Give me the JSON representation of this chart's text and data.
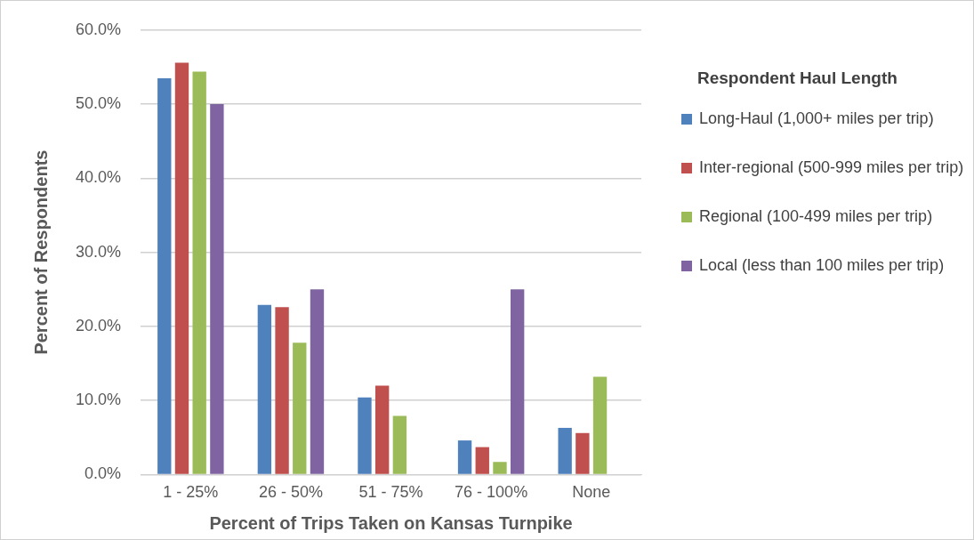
{
  "chart_data": {
    "type": "bar",
    "xlabel": "Percent of Trips Taken on Kansas Turnpike",
    "ylabel": "Percent of Respondents",
    "legend_title": "Respondent Haul Length",
    "legend": "right",
    "grid": "y",
    "categories": [
      "1 - 25%",
      "26 - 50%",
      "51 - 75%",
      "76 - 100%",
      "None"
    ],
    "ylim": [
      0,
      60
    ],
    "yticks": [
      {
        "value": 0,
        "label": "0.0%"
      },
      {
        "value": 10,
        "label": "10.0%"
      },
      {
        "value": 20,
        "label": "20.0%"
      },
      {
        "value": 30,
        "label": "30.0%"
      },
      {
        "value": 40,
        "label": "40.0%"
      },
      {
        "value": 50,
        "label": "50.0%"
      },
      {
        "value": 60,
        "label": "60.0%"
      }
    ],
    "series": [
      {
        "name": "Long-Haul (1,000+ miles per trip)",
        "color": "#4f81bd",
        "values": [
          53.5,
          22.9,
          10.4,
          4.6,
          6.3
        ]
      },
      {
        "name": "Inter-regional (500-999 miles per trip)",
        "color": "#c0504d",
        "values": [
          55.6,
          22.6,
          12.0,
          3.7,
          5.6
        ]
      },
      {
        "name": "Regional (100-499 miles per trip)",
        "color": "#9bbb59",
        "values": [
          54.4,
          17.8,
          7.9,
          1.7,
          13.2
        ]
      },
      {
        "name": "Local (less than 100 miles per trip)",
        "color": "#8064a2",
        "values": [
          50.0,
          25.0,
          0,
          25.0,
          0
        ]
      }
    ]
  }
}
